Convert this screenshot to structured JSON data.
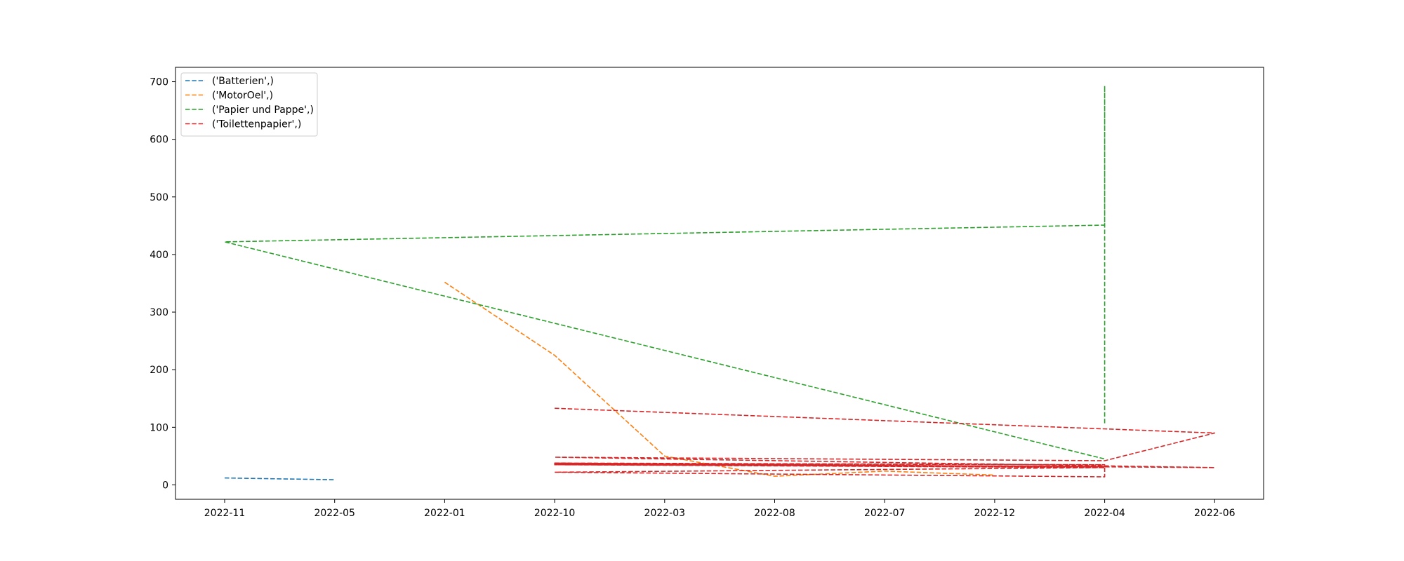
{
  "chart_data": {
    "type": "line",
    "title": "",
    "xlabel": "",
    "ylabel": "",
    "x_axis_kind": "categorical",
    "categories": [
      "2022-11",
      "2022-05",
      "2022-01",
      "2022-10",
      "2022-03",
      "2022-08",
      "2022-07",
      "2022-12",
      "2022-04",
      "2022-06"
    ],
    "ylim": [
      -25,
      725
    ],
    "yticks": [
      0,
      100,
      200,
      300,
      400,
      500,
      600,
      700
    ],
    "grid": false,
    "legend_position": "top-left",
    "line_style": "dashed",
    "series": [
      {
        "name": "('Batterien',)",
        "color": "#1f77b4",
        "points": [
          [
            "2022-11",
            12
          ],
          [
            "2022-05",
            9
          ]
        ]
      },
      {
        "name": "('MotorOel',)",
        "color": "#ff7f0e",
        "points": [
          [
            "2022-01",
            352
          ],
          [
            "2022-10",
            225
          ],
          [
            "2022-03",
            50
          ],
          [
            "2022-08",
            15
          ],
          [
            "2022-07",
            24
          ],
          [
            "2022-12",
            17
          ]
        ]
      },
      {
        "name": "('Papier und Pappe',)",
        "color": "#2ca02c",
        "points": [
          [
            "2022-04",
            107
          ],
          [
            "2022-04",
            693
          ],
          [
            "2022-04",
            451
          ],
          [
            "2022-11",
            422
          ],
          [
            "2022-04",
            45
          ]
        ]
      },
      {
        "name": "('Toilettenpapier',)",
        "color": "#d62728",
        "points": [
          [
            "2022-10",
            133
          ],
          [
            "2022-06",
            90
          ],
          [
            "2022-04",
            42
          ],
          [
            "2022-10",
            48
          ],
          [
            "2022-06",
            30
          ],
          [
            "2022-10",
            38
          ],
          [
            "2022-04",
            35
          ],
          [
            "2022-10",
            37
          ],
          [
            "2022-04",
            30
          ],
          [
            "2022-10",
            36
          ],
          [
            "2022-04",
            32
          ],
          [
            "2022-10",
            35
          ],
          [
            "2022-04",
            30
          ],
          [
            "2022-10",
            22
          ],
          [
            "2022-04",
            14
          ],
          [
            "2022-04",
            30
          ]
        ]
      }
    ]
  }
}
